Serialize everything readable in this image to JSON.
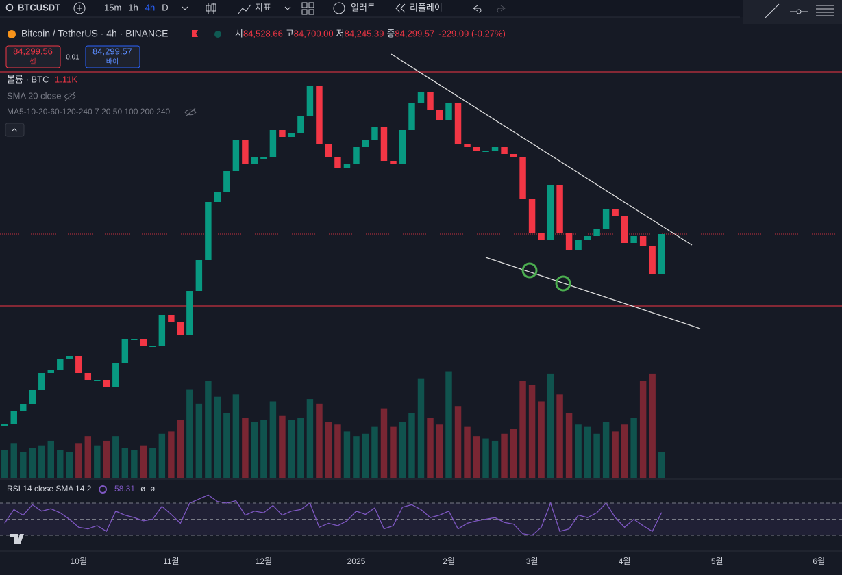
{
  "toolbar": {
    "symbol": "BTCUSDT",
    "intervals": [
      "15m",
      "1h",
      "4h",
      "D"
    ],
    "indicators": "지표",
    "alert": "얼러트",
    "replay": "리플레이"
  },
  "legend": {
    "title": "Bitcoin / TetherUS · 4h · BINANCE",
    "ohlc": [
      {
        "label": "시",
        "value": "84,528.66"
      },
      {
        "label": "고",
        "value": "84,700.00"
      },
      {
        "label": "저",
        "value": "84,245.39"
      },
      {
        "label": "종",
        "value": "84,299.57"
      }
    ],
    "change": "-229.09 (-0.27%)"
  },
  "trade": {
    "sell_price": "84,299.56",
    "sell": "셀",
    "qty": "0.01",
    "buy_price": "84,299.57",
    "buy": "바이"
  },
  "indicators": {
    "volume": "볼륨 · BTC",
    "volume_value": "1.11K",
    "sma": "SMA 20 close",
    "ma": "MA5-10-20-60-120-240 7 20 50 100 200 240",
    "rsi": "RSI 14 close SMA 14 2",
    "rsi_value": "58.31",
    "rsi_extra": [
      "ø",
      "ø"
    ]
  },
  "chart_data": {
    "type": "candlestick",
    "up_color": "#089981",
    "down_color": "#f23645",
    "categories": [
      null,
      null,
      null,
      null,
      null,
      null,
      null,
      null,
      "10월",
      null,
      null,
      null,
      null,
      null,
      null,
      null,
      null,
      null,
      "11월",
      null,
      null,
      null,
      null,
      null,
      null,
      null,
      null,
      null,
      "12월",
      null,
      null,
      null,
      null,
      null,
      null,
      null,
      null,
      null,
      "2025",
      null,
      null,
      null,
      null,
      null,
      null,
      null,
      null,
      null,
      "2월",
      null,
      null,
      null,
      null,
      null,
      null,
      null,
      null,
      "3월",
      null,
      null,
      null,
      null,
      null,
      null,
      null,
      null,
      null,
      "4월",
      null,
      null,
      null,
      null,
      null,
      null,
      null,
      null,
      null,
      "5월",
      null,
      null,
      null,
      null,
      null,
      null,
      null,
      null,
      null,
      null,
      "6월",
      null,
      null
    ],
    "values": [
      56500,
      58500,
      59500,
      61500,
      64000,
      64500,
      66000,
      66500,
      64000,
      63000,
      63000,
      62000,
      65500,
      69000,
      69000,
      68000,
      68000,
      72500,
      71500,
      69500,
      76000,
      80500,
      89000,
      90500,
      93500,
      98000,
      94500,
      95500,
      95500,
      99500,
      98500,
      99000,
      101500,
      106000,
      97500,
      95500,
      94000,
      94500,
      97000,
      98000,
      100000,
      95000,
      94500,
      99500,
      103500,
      105000,
      102500,
      101000,
      103500,
      97500,
      97000,
      96500,
      96500,
      97000,
      96000,
      95500,
      89500,
      84500,
      83500,
      91500,
      84500,
      82000,
      83500,
      84000,
      85000,
      88000,
      87000,
      83000,
      84000,
      82500,
      78500,
      84300,
      null,
      null,
      null,
      null,
      null,
      null,
      null,
      null,
      null,
      null,
      null,
      null,
      null,
      null,
      null,
      null,
      null,
      null,
      null
    ],
    "ylim": [
      48500,
      112500
    ],
    "volume": {
      "values": [
        1200,
        1500,
        1100,
        1300,
        1400,
        1600,
        1200,
        1100,
        1500,
        1800,
        1400,
        1600,
        1800,
        1300,
        1200,
        1400,
        1300,
        1900,
        2000,
        2500,
        3800,
        3200,
        4200,
        3500,
        2800,
        3600,
        2600,
        2400,
        2500,
        3300,
        2700,
        2500,
        2600,
        3400,
        3200,
        2400,
        2300,
        2000,
        1800,
        1900,
        2200,
        3000,
        2200,
        2400,
        2800,
        4300,
        2600,
        2300,
        4600,
        3100,
        2200,
        1800,
        1700,
        1600,
        1900,
        2100,
        4200,
        4000,
        3300,
        4500,
        3600,
        2800,
        2300,
        2200,
        1900,
        2400,
        2000,
        2300,
        2600,
        4200,
        4500,
        1110,
        null,
        null,
        null,
        null,
        null,
        null,
        null,
        null,
        null,
        null,
        null,
        null,
        null,
        null,
        null,
        null,
        null,
        null,
        null
      ],
      "ylim": [
        0,
        10000
      ]
    },
    "rsi": {
      "color": "#7e57c2",
      "values": [
        45,
        62,
        55,
        68,
        60,
        63,
        58,
        50,
        40,
        38,
        42,
        35,
        60,
        55,
        52,
        48,
        50,
        66,
        56,
        45,
        70,
        75,
        80,
        72,
        70,
        73,
        55,
        60,
        58,
        67,
        55,
        60,
        62,
        70,
        40,
        45,
        42,
        48,
        60,
        56,
        64,
        38,
        42,
        65,
        68,
        62,
        52,
        55,
        60,
        38,
        45,
        48,
        50,
        52,
        46,
        44,
        32,
        30,
        40,
        70,
        35,
        38,
        55,
        52,
        58,
        70,
        52,
        40,
        50,
        42,
        35,
        58.31,
        null,
        null,
        null,
        null,
        null,
        null,
        null,
        null,
        null,
        null,
        null,
        null,
        null,
        null,
        null,
        null,
        null,
        null,
        null
      ],
      "ylim": [
        19,
        95.5
      ],
      "levels": [
        30,
        50,
        70
      ]
    }
  }
}
